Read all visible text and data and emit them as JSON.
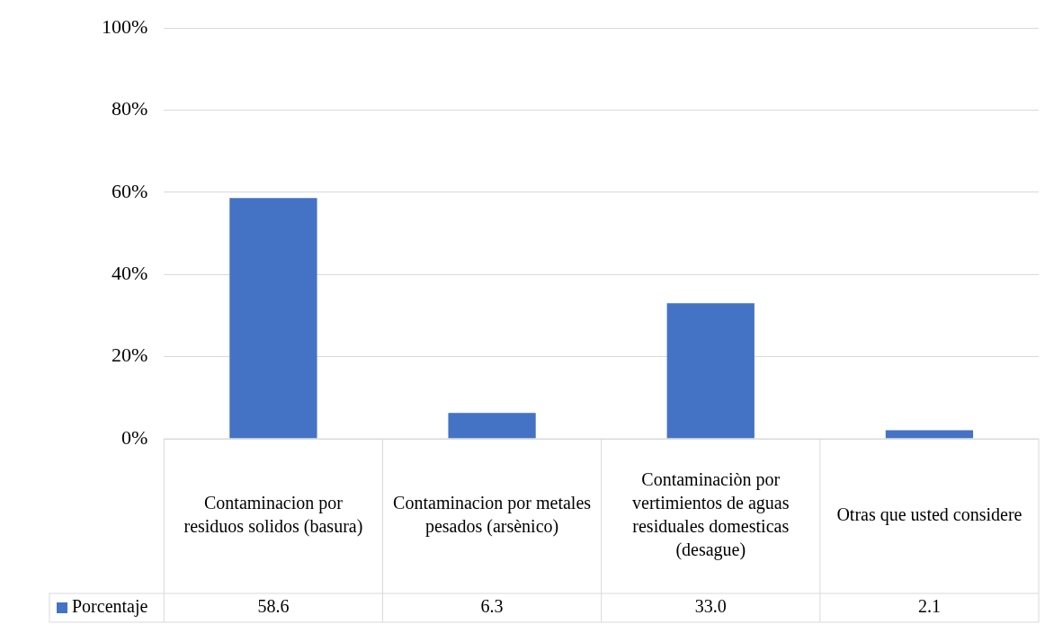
{
  "chart_data": {
    "type": "bar",
    "categories": [
      "Contaminacion por residuos solidos (basura)",
      "Contaminacion por metales pesados (arsènico)",
      "Contaminaciòn por vertimientos de aguas residuales domesticas (desague)",
      "Otras que usted considere"
    ],
    "series": [
      {
        "name": "Porcentaje",
        "color": "#4472c4",
        "values": [
          58.6,
          6.3,
          33.0,
          2.1
        ],
        "value_labels": [
          "58.6",
          "6.3",
          "33.0",
          "2.1"
        ]
      }
    ],
    "ylim": [
      0,
      100
    ],
    "yticks": [
      {
        "value": 0,
        "label": "0%"
      },
      {
        "value": 20,
        "label": "20%"
      },
      {
        "value": 40,
        "label": "40%"
      },
      {
        "value": 60,
        "label": "60%"
      },
      {
        "value": 80,
        "label": "80%"
      },
      {
        "value": 100,
        "label": "100%"
      }
    ],
    "grid": "y",
    "legend": "bottom"
  }
}
